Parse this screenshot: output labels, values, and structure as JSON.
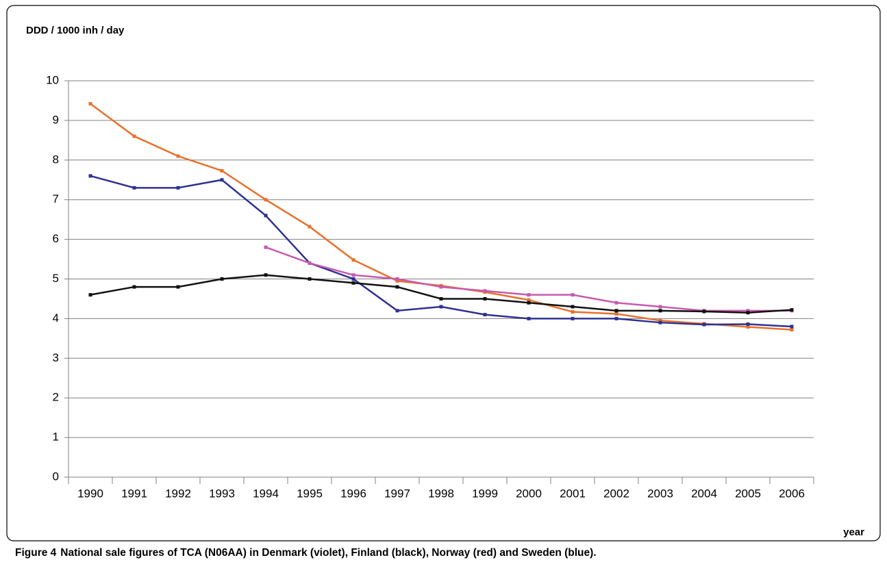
{
  "chart_data": {
    "type": "line",
    "ylabel": "DDD / 1000 inh / day",
    "xlabel": "year",
    "caption_label": "Figure 4",
    "caption_text": "National sale figures of TCA (N06AA) in Denmark (violet), Finland (black), Norway (red) and Sweden (blue).",
    "categories": [
      "1990",
      "1991",
      "1992",
      "1993",
      "1994",
      "1995",
      "1996",
      "1997",
      "1998",
      "1999",
      "2000",
      "2001",
      "2002",
      "2003",
      "2004",
      "2005",
      "2006"
    ],
    "series": [
      {
        "color": "#e8702a",
        "values": [
          9.42,
          8.6,
          8.1,
          7.73,
          7.0,
          6.32,
          5.48,
          4.95,
          4.83,
          4.67,
          4.47,
          4.17,
          4.12,
          3.95,
          3.87,
          3.79,
          3.72
        ]
      },
      {
        "color": "#2e3192",
        "values": [
          7.6,
          7.3,
          7.3,
          7.5,
          6.6,
          5.4,
          5.0,
          4.2,
          4.3,
          4.1,
          4.0,
          4.0,
          4.0,
          3.9,
          3.85,
          3.86,
          3.8
        ]
      },
      {
        "color": "#c65aaf",
        "values": [
          null,
          null,
          null,
          null,
          5.8,
          5.4,
          5.1,
          5.0,
          4.8,
          4.7,
          4.6,
          4.6,
          4.4,
          4.3,
          4.2,
          4.2,
          4.2
        ]
      },
      {
        "color": "#111111",
        "values": [
          4.6,
          4.8,
          4.8,
          5.0,
          5.1,
          5.0,
          4.9,
          4.8,
          4.5,
          4.5,
          4.4,
          4.3,
          4.2,
          4.2,
          4.18,
          4.15,
          4.22
        ]
      }
    ],
    "ylim": [
      0,
      10
    ],
    "yticks": [
      0,
      1,
      2,
      3,
      4,
      5,
      6,
      7,
      8,
      9,
      10
    ],
    "grid": true
  }
}
